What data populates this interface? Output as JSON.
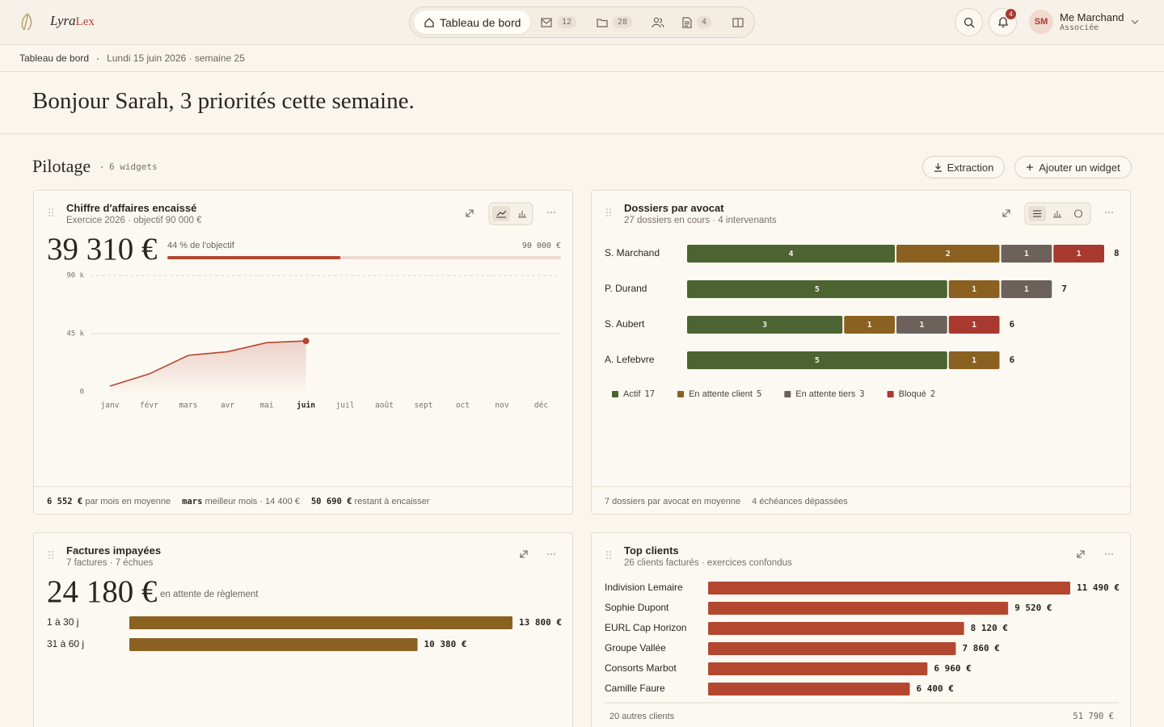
{
  "header": {
    "brand_a": "Lyra",
    "brand_b": "Lex",
    "nav": {
      "active": "Tableau de bord",
      "mail": 12,
      "folders": 28,
      "documents": 4
    },
    "notifications": 4,
    "user": {
      "initials": "SM",
      "name": "Me Marchand",
      "role": "Associée"
    }
  },
  "breadcrumb": {
    "page": "Tableau de bord",
    "date": "Lundi 15 juin 2026 · semaine 25"
  },
  "greeting": "Bonjour Sarah, 3 priorités cette semaine.",
  "section": {
    "title": "Pilotage",
    "count": "6 widgets",
    "actions": [
      "Extraction",
      "Ajouter un widget"
    ]
  },
  "chart_data": [
    {
      "type": "line",
      "title": "Chiffre d'affaires encaissé",
      "subtitle": "Exercice 2026 · objectif 90 000 €",
      "kpi": "39 310 €",
      "progress": {
        "label": "44 % de l'objectif",
        "value": 44,
        "target_label": "90 000 €"
      },
      "categories": [
        "janv",
        "févr",
        "mars",
        "avr",
        "mai",
        "juin",
        "juil",
        "août",
        "sept",
        "oct",
        "nov",
        "déc"
      ],
      "values": [
        4400,
        13800,
        28200,
        31000,
        38000,
        39310,
        null,
        null,
        null,
        null,
        null,
        null
      ],
      "color": "#b4472f",
      "ylim": [
        0,
        90000
      ],
      "yticks": [
        0,
        {
          "value": 45000,
          "label": "45 k"
        },
        {
          "value": 90000,
          "label": "90 k"
        }
      ],
      "grid": true,
      "footer": [
        {
          "strong": "6 552 €",
          "text": "par mois en moyenne"
        },
        {
          "strong": "mars",
          "text": "meilleur mois · 14 400 €"
        },
        {
          "strong": "50 690 €",
          "text": "restant à encaisser"
        }
      ]
    },
    {
      "type": "bar",
      "orientation": "horizontal",
      "stacked": true,
      "title": "Dossiers par avocat",
      "subtitle": "27 dossiers en cours · 4 intervenants",
      "categories": [
        "S. Marchand",
        "P. Durand",
        "S. Aubert",
        "A. Lefebvre"
      ],
      "series": [
        {
          "name": "Actif",
          "color": "#4b6431",
          "values": [
            4,
            5,
            3,
            5
          ],
          "total": 17
        },
        {
          "name": "En attente client",
          "color": "#8a6121",
          "values": [
            2,
            1,
            1,
            1
          ],
          "total": 5
        },
        {
          "name": "En attente tiers",
          "color": "#6c625b",
          "values": [
            1,
            1,
            1,
            0
          ],
          "total": 3
        },
        {
          "name": "Bloqué",
          "color": "#a8392f",
          "values": [
            1,
            0,
            1,
            0
          ],
          "total": 2
        }
      ],
      "totals": [
        8,
        7,
        6,
        6
      ],
      "xlim": [
        0,
        8
      ],
      "footer": [
        "7 dossiers par avocat en moyenne",
        "4 échéances dépassées"
      ]
    },
    {
      "type": "bar",
      "orientation": "horizontal",
      "title": "Factures impayées",
      "subtitle": "7 factures · 7 échues",
      "kpi": "24 180 €",
      "kpi_note": "en attente de règlement",
      "categories": [
        "1 à 30 j",
        "31 à 60 j"
      ],
      "values": [
        13800,
        10380
      ],
      "value_labels": [
        "13 800 €",
        "10 380 €"
      ],
      "color": "#8a6121",
      "xlim": [
        0,
        13800
      ]
    },
    {
      "type": "bar",
      "orientation": "horizontal",
      "title": "Top clients",
      "subtitle": "26 clients facturés · exercices confondus",
      "categories": [
        "Indivision Lemaire",
        "Sophie Dupont",
        "EURL Cap Horizon",
        "Groupe Vallée",
        "Consorts Marbot",
        "Camille Faure"
      ],
      "values": [
        11490,
        9520,
        8120,
        7860,
        6960,
        6400
      ],
      "value_labels": [
        "11 490 €",
        "9 520 €",
        "8 120 €",
        "7 860 €",
        "6 960 €",
        "6 400 €"
      ],
      "color": "#b4472f",
      "xlim": [
        0,
        11490
      ],
      "others": {
        "label": "20 autres clients",
        "value_label": "51 790 €"
      }
    }
  ]
}
